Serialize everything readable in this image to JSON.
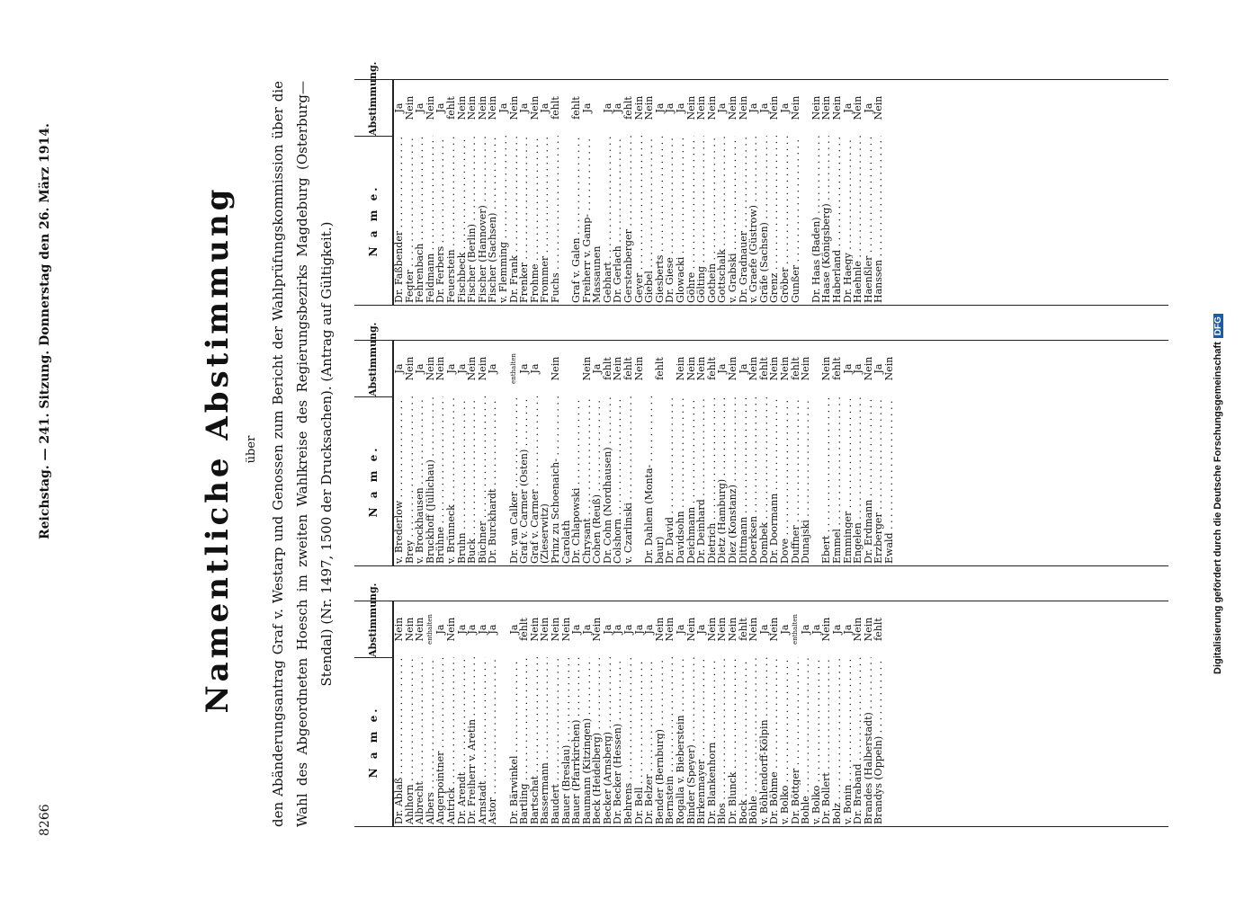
{
  "header": {
    "page_number": "8266",
    "running_head": "Reichstag. — 241. Sitzung. Donnerstag den 26. März 1914."
  },
  "title": "Namentliche Abstimmung",
  "ueber": "über",
  "subject": "den Abänderungsantrag Graf v. Westarp und Genossen zum Bericht der Wahlprüfungskommission über die Wahl des Abgeordneten Hoesch im zweiten Wahlkreise des Regierungsbezirks Magdeburg (Osterburg—Stendal) (Nr. 1497, 1500 der Drucksachen). (Antrag auf Gültigkeit.)",
  "column_headers": {
    "name": "N a m e.",
    "vote": "Abstimmung."
  },
  "credit": {
    "text": "Digitalisierung gefördert durch die Deutsche Forschungsgemeinschaft",
    "badge": "DFG"
  },
  "columns": [
    {
      "rows": [
        {
          "name": "Dr. Ablaß",
          "vote": "Nein"
        },
        {
          "name": "Ahlhorn",
          "vote": "Nein"
        },
        {
          "name": "Albrecht",
          "vote": "Nein"
        },
        {
          "name": "Albers",
          "vote": "enthalten"
        },
        {
          "name": "Angerpointner",
          "vote": "Ja"
        },
        {
          "name": "Antrick",
          "vote": "Nein"
        },
        {
          "name": "Dr. Arendt",
          "vote": "Ja"
        },
        {
          "name": "Dr. Freiherr v. Aretin",
          "vote": "Ja"
        },
        {
          "name": "Arnstadt",
          "vote": "Ja"
        },
        {
          "name": "Astor",
          "vote": "Ja"
        },
        {
          "name": "",
          "vote": ""
        },
        {
          "name": "Dr. Bärwinkel",
          "vote": "Ja"
        },
        {
          "name": "Bartling",
          "vote": "fehlt"
        },
        {
          "name": "Bartschat",
          "vote": "Nein"
        },
        {
          "name": "Bassermann",
          "vote": "Nein"
        },
        {
          "name": "Baudert",
          "vote": "Nein"
        },
        {
          "name": "Bauer (Breslau)",
          "vote": "Nein"
        },
        {
          "name": "Bauer (Pfarrkirchen)",
          "vote": "Ja"
        },
        {
          "name": "Baumann (Kitzingen)",
          "vote": "Ja"
        },
        {
          "name": "Beck (Heidelberg)",
          "vote": "Nein"
        },
        {
          "name": "Becker (Arnsberg)",
          "vote": "Ja"
        },
        {
          "name": "Dr. Becker (Hessen)",
          "vote": "Ja"
        },
        {
          "name": "Behrens",
          "vote": "Ja"
        },
        {
          "name": "Dr. Bell",
          "vote": "Ja"
        },
        {
          "name": "Dr. Belzer",
          "vote": "Ja"
        },
        {
          "name": "Bender (Bernburg)",
          "vote": "Nein"
        },
        {
          "name": "Bernstein",
          "vote": "Nein"
        },
        {
          "name": "Rogalla v. Bieberstein",
          "vote": "Ja"
        },
        {
          "name": "Binder (Speyer)",
          "vote": "Nein"
        },
        {
          "name": "Birkenmayer",
          "vote": "Ja"
        },
        {
          "name": "Dr. Blankenhorn",
          "vote": "Nein"
        },
        {
          "name": "Blos",
          "vote": "Nein"
        },
        {
          "name": "Dr. Blunck",
          "vote": "Nein"
        },
        {
          "name": "Bock",
          "vote": "fehlt"
        },
        {
          "name": "Böhle",
          "vote": "Nein"
        },
        {
          "name": "v. Böhlendorff-Kölpin",
          "vote": "Ja"
        },
        {
          "name": "Dr. Böhme",
          "vote": "Nein"
        },
        {
          "name": "v. Bolko",
          "vote": "Ja"
        },
        {
          "name": "Dr. Böttger",
          "vote": "enthalten"
        },
        {
          "name": "Bohle",
          "vote": "Ja"
        },
        {
          "name": "v. Bolko",
          "vote": "Ja"
        },
        {
          "name": "Dr. Bollert",
          "vote": "Nein"
        },
        {
          "name": "Bolz",
          "vote": "Ja"
        },
        {
          "name": "v. Bonin",
          "vote": "Ja"
        },
        {
          "name": "Dr. Braband",
          "vote": "Nein"
        },
        {
          "name": "Brandes (Halberstadt)",
          "vote": "Nein"
        },
        {
          "name": "Brandys (Oppeln)",
          "vote": "fehlt"
        }
      ]
    },
    {
      "rows": [
        {
          "name": "v. Brederlow",
          "vote": "Ja"
        },
        {
          "name": "Brey",
          "vote": "Nein"
        },
        {
          "name": "v. Brockhausen",
          "vote": "Ja"
        },
        {
          "name": "Bruckhoff (Jüllichau)",
          "vote": "Nein"
        },
        {
          "name": "Brühne",
          "vote": "Nein"
        },
        {
          "name": "v. Brünneck",
          "vote": "Ja"
        },
        {
          "name": "Bruhn",
          "vote": "Ja"
        },
        {
          "name": "Buck",
          "vote": "Nein"
        },
        {
          "name": "Büchner",
          "vote": "Nein"
        },
        {
          "name": "Dr. Burckhardt",
          "vote": "Ja"
        },
        {
          "name": "",
          "vote": ""
        },
        {
          "name": "Dr. van Calker",
          "vote": "enthalten"
        },
        {
          "name": "Graf v. Carmer (Osten)",
          "vote": "Ja"
        },
        {
          "name": "Graf v. Carmer",
          "vote": "Ja"
        },
        {
          "name": "(Zieserwitz)",
          "vote": "",
          "cont": true
        },
        {
          "name": "Prinz zu Schoenaich-",
          "vote": "Nein"
        },
        {
          "name": "Carolath",
          "vote": "",
          "cont": true
        },
        {
          "name": "Dr. Chlapowski",
          "vote": ""
        },
        {
          "name": "Chrysant",
          "vote": "Nein"
        },
        {
          "name": "Cohen (Reuß)",
          "vote": "Ja"
        },
        {
          "name": "Dr. Cohn (Nordhausen)",
          "vote": "fehlt"
        },
        {
          "name": "Colshorn",
          "vote": "Nein"
        },
        {
          "name": "v. Czarlinski",
          "vote": "fehlt"
        },
        {
          "name": "",
          "vote": "Nein"
        },
        {
          "name": "Dr. Dahlem (Monta-",
          "vote": ""
        },
        {
          "name": "baur)",
          "vote": "fehlt",
          "cont": true
        },
        {
          "name": "Dr. David",
          "vote": ""
        },
        {
          "name": "Davidsohn",
          "vote": "Nein"
        },
        {
          "name": "Deichmann",
          "vote": "Nein"
        },
        {
          "name": "Dr. Deinhard",
          "vote": "Nein"
        },
        {
          "name": "Dietrich",
          "vote": "fehlt"
        },
        {
          "name": "Dietz (Hamburg)",
          "vote": "Ja"
        },
        {
          "name": "Diez (Konstanz)",
          "vote": "Nein"
        },
        {
          "name": "Dittmann",
          "vote": "Ja"
        },
        {
          "name": "Doerksen",
          "vote": "Nein"
        },
        {
          "name": "Dombek",
          "vote": "fehlt"
        },
        {
          "name": "Dr. Doormann",
          "vote": "Nein"
        },
        {
          "name": "Dove",
          "vote": "Nein"
        },
        {
          "name": "Duffner",
          "vote": "fehlt"
        },
        {
          "name": "Dunajski",
          "vote": "Nein"
        },
        {
          "name": "",
          "vote": ""
        },
        {
          "name": "Ebert",
          "vote": "Nein"
        },
        {
          "name": "Emmel",
          "vote": "fehlt"
        },
        {
          "name": "Emminger",
          "vote": "Ja"
        },
        {
          "name": "Engelen",
          "vote": "Ja"
        },
        {
          "name": "Dr. Erdmann",
          "vote": "Nein"
        },
        {
          "name": "Erzberger",
          "vote": "Ja"
        },
        {
          "name": "Ewald",
          "vote": "Nein"
        }
      ]
    },
    {
      "rows": [
        {
          "name": "Dr. Faßbender",
          "vote": "Ja"
        },
        {
          "name": "Fegter",
          "vote": "Nein"
        },
        {
          "name": "Fehrenbach",
          "vote": "Ja"
        },
        {
          "name": "Feldmann",
          "vote": "Nein"
        },
        {
          "name": "Dr. Ferbers",
          "vote": "Ja"
        },
        {
          "name": "Feuerstein",
          "vote": "fehlt"
        },
        {
          "name": "Fischbeck",
          "vote": "Nein"
        },
        {
          "name": "Fischer (Berlin)",
          "vote": "Nein"
        },
        {
          "name": "Fischer (Hannover)",
          "vote": "Nein"
        },
        {
          "name": "Fischer (Sachsen)",
          "vote": "Nein"
        },
        {
          "name": "v. Flemming",
          "vote": "Ja"
        },
        {
          "name": "Dr. Frank",
          "vote": "Nein"
        },
        {
          "name": "Frenker",
          "vote": "Ja"
        },
        {
          "name": "Frohme",
          "vote": "Nein"
        },
        {
          "name": "Frommer",
          "vote": "Ja"
        },
        {
          "name": "Fuchs",
          "vote": "fehlt"
        },
        {
          "name": "",
          "vote": ""
        },
        {
          "name": "Graf v. Galen",
          "vote": "fehlt"
        },
        {
          "name": "Freiherr v. Gamp-",
          "vote": "Ja"
        },
        {
          "name": "Massaunen",
          "vote": "",
          "cont": true
        },
        {
          "name": "Gebhart",
          "vote": "Ja"
        },
        {
          "name": "Dr. Gerlach",
          "vote": "Ja"
        },
        {
          "name": "Gerstenberger",
          "vote": "fehlt"
        },
        {
          "name": "Geyer",
          "vote": "Nein"
        },
        {
          "name": "Giebel",
          "vote": "Nein"
        },
        {
          "name": "Giesberts",
          "vote": "Ja"
        },
        {
          "name": "Dr. Giese",
          "vote": "Ja"
        },
        {
          "name": "Glowacki",
          "vote": "Ja"
        },
        {
          "name": "Göhre",
          "vote": "Nein"
        },
        {
          "name": "Gölting",
          "vote": "Nein"
        },
        {
          "name": "Gothein",
          "vote": "Nein"
        },
        {
          "name": "Gottschalk",
          "vote": "Ja"
        },
        {
          "name": "v. Grabski",
          "vote": "Nein"
        },
        {
          "name": "Dr. Gradnauer",
          "vote": "Nein"
        },
        {
          "name": "v. Graefe (Güstrow)",
          "vote": "Ja"
        },
        {
          "name": "Gräfe (Sachsen)",
          "vote": "Ja"
        },
        {
          "name": "Grenz",
          "vote": "Nein"
        },
        {
          "name": "Gröber",
          "vote": "Ja"
        },
        {
          "name": "Gunßer",
          "vote": "Nein"
        },
        {
          "name": "",
          "vote": ""
        },
        {
          "name": "Dr. Haas (Baden)",
          "vote": "Nein"
        },
        {
          "name": "Haase (Königsberg)",
          "vote": "Nein"
        },
        {
          "name": "Haberland",
          "vote": "Nein"
        },
        {
          "name": "Dr. Haegy",
          "vote": "Ja"
        },
        {
          "name": "Haehnle",
          "vote": "Nein"
        },
        {
          "name": "Haenßler",
          "vote": "Ja"
        },
        {
          "name": "Hanssen",
          "vote": "Nein"
        }
      ]
    }
  ]
}
